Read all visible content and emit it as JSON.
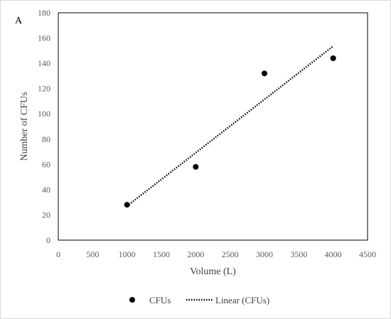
{
  "chart_data": {
    "type": "scatter",
    "panel_label": "A",
    "xlabel": "Volume (L)",
    "ylabel": "Number of CFUs",
    "xlim": [
      0,
      4500
    ],
    "ylim": [
      0,
      180
    ],
    "x_ticks": [
      0,
      500,
      1000,
      1500,
      2000,
      2500,
      3000,
      3500,
      4000,
      4500
    ],
    "y_ticks": [
      0,
      20,
      40,
      60,
      80,
      100,
      120,
      140,
      160,
      180
    ],
    "grid": false,
    "legend_position": "bottom",
    "series": [
      {
        "name": "CFUs",
        "kind": "scatter",
        "color": "#000000",
        "x": [
          1000,
          2000,
          3000,
          4000
        ],
        "y": [
          28,
          58,
          132,
          144
        ]
      },
      {
        "name": "Linear (CFUs)",
        "kind": "trendline",
        "style": "dotted",
        "color": "#000000",
        "x": [
          1000,
          4000
        ],
        "y": [
          27,
          153.6
        ]
      }
    ]
  }
}
